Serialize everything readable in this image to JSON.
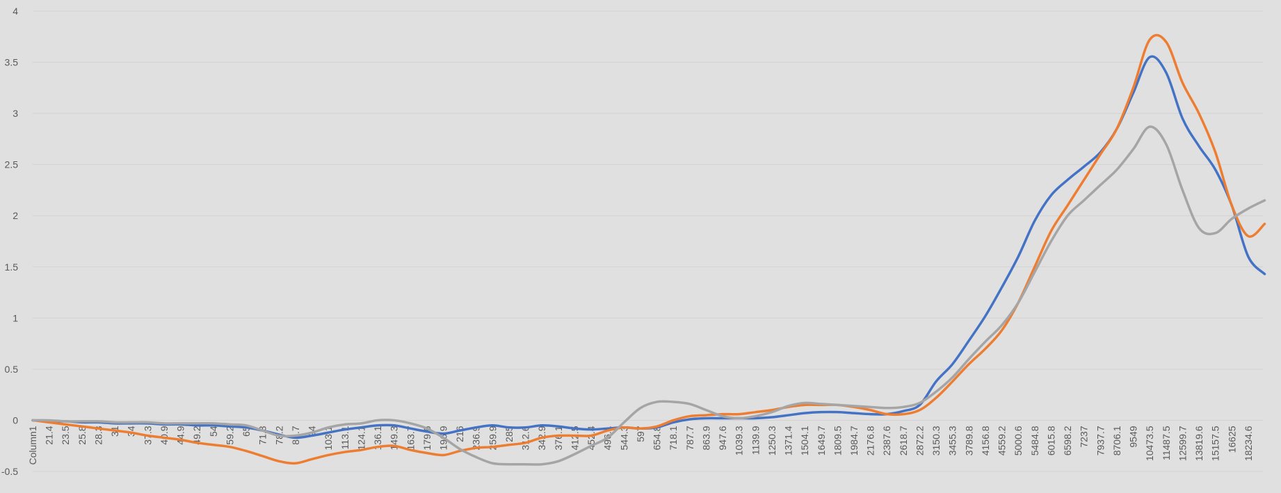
{
  "chart_data": {
    "type": "line",
    "categories": [
      "Column1",
      "21.4",
      "23.5",
      "25.8",
      "28.3",
      "31",
      "34",
      "37.3",
      "40.9",
      "44.9",
      "49.2",
      "54",
      "59.2",
      "65",
      "71.3",
      "78.2",
      "85.7",
      "94",
      "103.1",
      "113.1",
      "124.1",
      "136.1",
      "149.3",
      "163.7",
      "179.6",
      "196.9",
      "216",
      "236.9",
      "259.9",
      "285",
      "312.6",
      "342.9",
      "376.1",
      "412.5",
      "452.4",
      "496.1",
      "544.3",
      "597",
      "654.8",
      "718.1",
      "787.7",
      "863.9",
      "947.6",
      "1039.3",
      "1139.9",
      "1250.3",
      "1371.4",
      "1504.1",
      "1649.7",
      "1809.5",
      "1984.7",
      "2176.8",
      "2387.6",
      "2618.7",
      "2872.2",
      "3150.3",
      "3455.3",
      "3789.8",
      "4156.8",
      "4559.2",
      "5000.6",
      "5484.8",
      "6015.8",
      "6598.2",
      "7237",
      "7937.7",
      "8706.1",
      "9549",
      "10473.5",
      "11487.5",
      "12599.7",
      "13819.6",
      "15157.5",
      "16625",
      "18234.6",
      null
    ],
    "series": [
      {
        "color": "#4472c4",
        "values": [
          0,
          -0.01,
          -0.01,
          -0.02,
          -0.02,
          -0.03,
          -0.03,
          -0.03,
          -0.04,
          -0.04,
          -0.05,
          -0.05,
          -0.06,
          -0.07,
          -0.1,
          -0.14,
          -0.17,
          -0.15,
          -0.12,
          -0.09,
          -0.07,
          -0.05,
          -0.05,
          -0.08,
          -0.11,
          -0.13,
          -0.1,
          -0.07,
          -0.05,
          -0.07,
          -0.07,
          -0.05,
          -0.06,
          -0.08,
          -0.09,
          -0.08,
          -0.07,
          -0.08,
          -0.07,
          -0.02,
          0.01,
          0.02,
          0.02,
          0.02,
          0.02,
          0.03,
          0.05,
          0.07,
          0.08,
          0.08,
          0.07,
          0.06,
          0.06,
          0.09,
          0.15,
          0.38,
          0.55,
          0.78,
          1.02,
          1.3,
          1.6,
          1.95,
          2.2,
          2.35,
          2.48,
          2.62,
          2.85,
          3.2,
          3.55,
          3.4,
          2.95,
          2.68,
          2.45,
          2.1,
          1.6,
          1.43
        ]
      },
      {
        "color": "#ed7d31",
        "values": [
          0,
          -0.02,
          -0.04,
          -0.06,
          -0.08,
          -0.1,
          -0.12,
          -0.15,
          -0.17,
          -0.19,
          -0.22,
          -0.24,
          -0.26,
          -0.3,
          -0.35,
          -0.4,
          -0.42,
          -0.38,
          -0.34,
          -0.31,
          -0.29,
          -0.26,
          -0.25,
          -0.29,
          -0.32,
          -0.34,
          -0.3,
          -0.27,
          -0.26,
          -0.24,
          -0.22,
          -0.17,
          -0.15,
          -0.15,
          -0.15,
          -0.1,
          -0.07,
          -0.08,
          -0.06,
          0,
          0.04,
          0.05,
          0.06,
          0.06,
          0.08,
          0.1,
          0.13,
          0.15,
          0.15,
          0.15,
          0.13,
          0.1,
          0.06,
          0.06,
          0.1,
          0.22,
          0.38,
          0.55,
          0.7,
          0.88,
          1.15,
          1.5,
          1.85,
          2.1,
          2.35,
          2.6,
          2.85,
          3.25,
          3.72,
          3.7,
          3.3,
          3.0,
          2.62,
          2.1,
          1.8,
          1.92
        ]
      },
      {
        "color": "#a5a5a5",
        "values": [
          0,
          0,
          -0.01,
          -0.01,
          -0.01,
          -0.02,
          -0.02,
          -0.02,
          -0.03,
          -0.03,
          -0.03,
          -0.03,
          -0.04,
          -0.05,
          -0.1,
          -0.15,
          -0.15,
          -0.12,
          -0.07,
          -0.04,
          -0.03,
          0,
          0,
          -0.03,
          -0.08,
          -0.17,
          -0.28,
          -0.36,
          -0.42,
          -0.43,
          -0.43,
          -0.43,
          -0.4,
          -0.33,
          -0.25,
          -0.17,
          -0.02,
          0.12,
          0.18,
          0.18,
          0.16,
          0.1,
          0.04,
          0.02,
          0.04,
          0.08,
          0.14,
          0.17,
          0.16,
          0.15,
          0.14,
          0.13,
          0.12,
          0.13,
          0.17,
          0.28,
          0.42,
          0.6,
          0.77,
          0.93,
          1.15,
          1.45,
          1.75,
          2.0,
          2.15,
          2.3,
          2.45,
          2.65,
          2.87,
          2.7,
          2.25,
          1.88,
          1.83,
          1.97,
          2.07,
          2.15
        ]
      }
    ],
    "ylim": [
      -0.5,
      4
    ],
    "yticks": [
      -0.5,
      0,
      0.5,
      1,
      1.5,
      2,
      2.5,
      3,
      3.5,
      4
    ],
    "grid": true
  }
}
